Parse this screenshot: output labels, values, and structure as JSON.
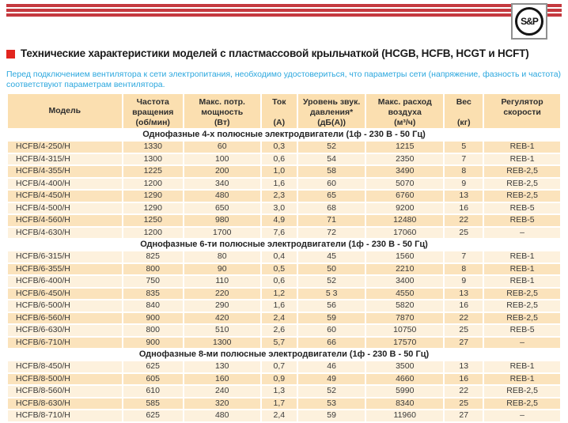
{
  "brand": {
    "logo_text": "S&P",
    "stripes_color": "#c5393f",
    "stripe_count": 3
  },
  "title": {
    "bullet_color": "#e2251e",
    "text": "Технические характеристики моделей с пластмассовой крыльчаткой (HCGB, HCFB, HCGT и HCFT)"
  },
  "note": {
    "color": "#2ba7de",
    "text": "Перед подключением вентилятора к сети электропитания, необходимо удостовериться, что параметры сети (напряжение, фазность и частота) соответствуют параметрам вентилятора."
  },
  "table": {
    "colors": {
      "header_bg": "#fbdfb0",
      "row_dark": "#fbe3bc",
      "row_light": "#fdf1dd",
      "section_bg": "#ffffff"
    },
    "columns": [
      {
        "id": "model",
        "width": "21%",
        "lines": [
          "Модель"
        ]
      },
      {
        "id": "speed",
        "width": "11%",
        "lines": [
          "Частота",
          "вращения",
          "(об/мин)"
        ]
      },
      {
        "id": "power",
        "width": "14%",
        "lines": [
          "Макс. потр.",
          "мощность",
          "(Вт)"
        ]
      },
      {
        "id": "current",
        "width": "6.5%",
        "lines": [
          "Ток",
          "",
          "(А)"
        ]
      },
      {
        "id": "noise",
        "width": "12.3%",
        "lines": [
          "Уровень звук.",
          "давления*",
          "(дБ(А))"
        ]
      },
      {
        "id": "airflow",
        "width": "14.2%",
        "lines": [
          "Макс. расход",
          "воздуха",
          "(м³/ч)"
        ]
      },
      {
        "id": "weight",
        "width": "7%",
        "lines": [
          "Вес",
          "",
          "(кг)"
        ]
      },
      {
        "id": "regulator",
        "width": "14%",
        "lines": [
          "Регулятор",
          "скорости"
        ]
      }
    ],
    "sections": [
      {
        "title": "Однофазные 4-х полюсные электродвигатели (1ф - 230 В - 50 Гц)",
        "alt_start": "dark",
        "rows": [
          [
            "HCFB/4-250/H",
            "1330",
            "60",
            "0,3",
            "52",
            "1215",
            "5",
            "REB-1"
          ],
          [
            "HCFB/4-315/H",
            "1300",
            "100",
            "0,6",
            "54",
            "2350",
            "7",
            "REB-1"
          ],
          [
            "HCFB/4-355/H",
            "1225",
            "200",
            "1,0",
            "58",
            "3490",
            "8",
            "REB-2,5"
          ],
          [
            "HCFB/4-400/H",
            "1200",
            "340",
            "1,6",
            "60",
            "5070",
            "9",
            "REB-2,5"
          ],
          [
            "HCFB/4-450/H",
            "1290",
            "480",
            "2,3",
            "65",
            "6760",
            "13",
            "REB-2,5"
          ],
          [
            "HCFB/4-500/H",
            "1290",
            "650",
            "3,0",
            "68",
            "9200",
            "16",
            "REB-5"
          ],
          [
            "HCFB/4-560/H",
            "1250",
            "980",
            "4,9",
            "71",
            "12480",
            "22",
            "REB-5"
          ],
          [
            "HCFB/4-630/H",
            "1200",
            "1700",
            "7,6",
            "72",
            "17060",
            "25",
            "–"
          ]
        ]
      },
      {
        "title": "Однофазные 6-ти полюсные электродвигатели (1ф - 230 В - 50 Гц)",
        "alt_start": "light",
        "rows": [
          [
            "HCFB/6-315/H",
            "825",
            "80",
            "0,4",
            "45",
            "1560",
            "7",
            "REB-1"
          ],
          [
            "HCFB/6-355/H",
            "800",
            "90",
            "0,5",
            "50",
            "2210",
            "8",
            "REB-1"
          ],
          [
            "HCFB/6-400/H",
            "750",
            "110",
            "0,6",
            "52",
            "3400",
            "9",
            "REB-1"
          ],
          [
            "HCFB/6-450/H",
            "835",
            "220",
            "1,2",
            "5 3",
            "4550",
            "13",
            "REB-2,5"
          ],
          [
            "HCFB/6-500/H",
            "840",
            "290",
            "1,6",
            "56",
            "5820",
            "16",
            "REB-2,5"
          ],
          [
            "HCFB/6-560/H",
            "900",
            "420",
            "2,4",
            "59",
            "7870",
            "22",
            "REB-2,5"
          ],
          [
            "HCFB/6-630/H",
            "800",
            "510",
            "2,6",
            "60",
            "10750",
            "25",
            "REB-5"
          ],
          [
            "HCFB/6-710/H",
            "900",
            "1300",
            "5,7",
            "66",
            "17570",
            "27",
            "–"
          ]
        ]
      },
      {
        "title": "Однофазные 8-ми полюсные электродвигатели (1ф - 230 В - 50 Гц)",
        "alt_start": "light",
        "rows": [
          [
            "HCFB/8-450/H",
            "625",
            "130",
            "0,7",
            "46",
            "3500",
            "13",
            "REB-1"
          ],
          [
            "HCFB/8-500/H",
            "605",
            "160",
            "0,9",
            "49",
            "4660",
            "16",
            "REB-1"
          ],
          [
            "HCFB/8-560/H",
            "610",
            "240",
            "1,3",
            "52",
            "5990",
            "22",
            "REB-2,5"
          ],
          [
            "HCFB/8-630/H",
            "585",
            "320",
            "1,7",
            "53",
            "8340",
            "25",
            "REB-2,5"
          ],
          [
            "HCFB/8-710/H",
            "625",
            "480",
            "2,4",
            "59",
            "11960",
            "27",
            "–"
          ]
        ]
      }
    ]
  }
}
